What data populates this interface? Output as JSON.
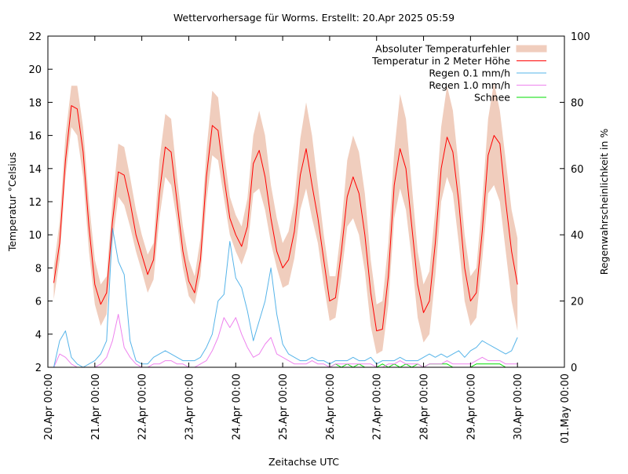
{
  "chart_data": {
    "type": "line",
    "title": "Wettervorhersage für Worms. Erstellt: 20.Apr 2025 05:59",
    "xlabel": "Zeitachse UTC",
    "ylabel": "Temperatur °Celsius",
    "y2label": "Regenwahrscheinlichkeit in %",
    "ylim": [
      2,
      22
    ],
    "y2lim": [
      0,
      100
    ],
    "yticks": [
      "2",
      "4",
      "6",
      "8",
      "10",
      "12",
      "14",
      "16",
      "18",
      "20",
      "22"
    ],
    "y2ticks": [
      "0",
      "20",
      "40",
      "60",
      "80",
      "100"
    ],
    "xlim_days": [
      0,
      11
    ],
    "xticks": [
      "20.Apr 00:00",
      "21.Apr 00:00",
      "22.Apr 00:00",
      "23.Apr 00:00",
      "24.Apr 00:00",
      "25.Apr 00:00",
      "26.Apr 00:00",
      "27.Apr 00:00",
      "28.Apr 00:00",
      "29.Apr 00:00",
      "30.Apr 00:00",
      "01.May 00:00"
    ],
    "grid": false,
    "legend_position": "top-right",
    "legend": [
      {
        "label": "Absoluter Temperaturfehler",
        "color": "#f0cdbd",
        "kind": "band"
      },
      {
        "label": "Temperatur in 2 Meter Höhe",
        "color": "#ff0000",
        "kind": "line"
      },
      {
        "label": "Regen 0.1 mm/h",
        "color": "#56b4e9",
        "kind": "line"
      },
      {
        "label": "Regen 1.0 mm/h",
        "color": "#ee82ee",
        "kind": "line"
      },
      {
        "label": "Schnee",
        "color": "#00dd00",
        "kind": "line"
      }
    ],
    "x_days": [
      0.0,
      0.125,
      0.25,
      0.375,
      0.5,
      0.625,
      0.75,
      0.875,
      1.0,
      1.125,
      1.25,
      1.375,
      1.5,
      1.625,
      1.75,
      1.875,
      2.0,
      2.125,
      2.25,
      2.375,
      2.5,
      2.625,
      2.75,
      2.875,
      3.0,
      3.125,
      3.25,
      3.375,
      3.5,
      3.625,
      3.75,
      3.875,
      4.0,
      4.125,
      4.25,
      4.375,
      4.5,
      4.625,
      4.75,
      4.875,
      5.0,
      5.125,
      5.25,
      5.375,
      5.5,
      5.625,
      5.75,
      5.875,
      6.0,
      6.125,
      6.25,
      6.375,
      6.5,
      6.625,
      6.75,
      6.875,
      7.0,
      7.125,
      7.25,
      7.375,
      7.5,
      7.625,
      7.75,
      7.875,
      8.0,
      8.125,
      8.25,
      8.375,
      8.5,
      8.625,
      8.75,
      8.875,
      9.0,
      9.125,
      9.25,
      9.375,
      9.5,
      9.625,
      9.75,
      9.875,
      10.0
    ],
    "series": [
      {
        "name": "Temperatur in 2 Meter Höhe",
        "unit": "°C",
        "values": [
          null,
          7.1,
          9.5,
          14.5,
          17.8,
          17.6,
          15.0,
          10.5,
          7.0,
          5.8,
          6.5,
          10.8,
          13.8,
          13.6,
          12.0,
          10.0,
          8.8,
          7.6,
          8.5,
          12.5,
          15.3,
          15.0,
          12.0,
          9.0,
          7.2,
          6.5,
          8.5,
          13.5,
          16.6,
          16.3,
          13.5,
          11.0,
          10.0,
          9.3,
          10.5,
          14.3,
          15.1,
          13.5,
          11.0,
          9.0,
          8.0,
          8.5,
          10.2,
          13.6,
          15.2,
          13.0,
          11.0,
          8.5,
          6.0,
          6.2,
          9.0,
          12.3,
          13.5,
          12.5,
          10.0,
          6.5,
          4.2,
          4.3,
          7.5,
          13.0,
          15.2,
          14.0,
          10.5,
          7.0,
          5.3,
          6.0,
          9.5,
          14.0,
          15.9,
          15.0,
          12.0,
          8.0,
          6.0,
          6.5,
          10.2,
          14.8,
          16.0,
          15.5,
          12.0,
          9.0,
          7.0
        ]
      },
      {
        "name": "Temperatur Min (Fehlerband)",
        "unit": "°C",
        "values": [
          null,
          6.1,
          8.5,
          13.5,
          16.5,
          16.0,
          13.5,
          9.0,
          5.8,
          4.5,
          5.2,
          9.5,
          12.3,
          11.8,
          10.5,
          9.0,
          7.8,
          6.5,
          7.3,
          11.0,
          13.5,
          13.0,
          10.8,
          8.0,
          6.3,
          5.8,
          7.5,
          12.0,
          14.8,
          14.5,
          12.2,
          10.0,
          9.0,
          8.2,
          9.2,
          12.5,
          12.8,
          11.5,
          9.5,
          8.0,
          6.8,
          7.0,
          8.6,
          11.5,
          12.8,
          11.0,
          9.5,
          7.0,
          4.8,
          5.0,
          7.5,
          10.5,
          11.0,
          10.0,
          7.8,
          4.5,
          2.8,
          3.0,
          5.8,
          11.0,
          12.8,
          11.5,
          8.5,
          5.0,
          3.5,
          4.0,
          7.5,
          12.0,
          13.5,
          12.5,
          9.5,
          6.0,
          4.5,
          5.0,
          8.5,
          12.5,
          13.0,
          12.0,
          9.0,
          6.0,
          4.2
        ]
      },
      {
        "name": "Temperatur Max (Fehlerband)",
        "unit": "°C",
        "values": [
          null,
          8.0,
          10.8,
          16.0,
          19.0,
          19.0,
          16.5,
          12.0,
          8.5,
          7.0,
          7.5,
          12.0,
          15.5,
          15.3,
          13.5,
          11.5,
          10.0,
          8.8,
          9.5,
          14.5,
          17.3,
          17.0,
          13.5,
          10.5,
          8.5,
          7.5,
          9.8,
          15.0,
          18.7,
          18.3,
          15.0,
          12.3,
          11.2,
          10.5,
          12.2,
          16.0,
          17.5,
          16.0,
          13.0,
          11.0,
          9.5,
          10.2,
          12.0,
          15.8,
          18.0,
          16.0,
          13.0,
          10.0,
          7.5,
          7.5,
          10.5,
          14.5,
          16.0,
          15.0,
          12.5,
          8.5,
          5.8,
          6.0,
          9.5,
          15.0,
          18.5,
          17.0,
          13.0,
          9.0,
          7.0,
          7.8,
          11.5,
          16.5,
          19.0,
          17.5,
          14.0,
          10.0,
          7.5,
          8.0,
          12.0,
          17.0,
          19.2,
          17.5,
          14.5,
          11.5,
          9.8
        ]
      },
      {
        "name": "Regen 0.1 mm/h",
        "unit": "%",
        "values": [
          null,
          0,
          8,
          11,
          3,
          1,
          0,
          1,
          2,
          4,
          8,
          42,
          32,
          28,
          8,
          2,
          1,
          1,
          3,
          4,
          5,
          4,
          3,
          2,
          2,
          2,
          3,
          6,
          10,
          20,
          22,
          38,
          27,
          24,
          17,
          8,
          14,
          20,
          30,
          16,
          7,
          4,
          3,
          2,
          2,
          3,
          2,
          2,
          1,
          2,
          2,
          2,
          3,
          2,
          2,
          3,
          1,
          2,
          2,
          2,
          3,
          2,
          2,
          2,
          3,
          4,
          3,
          4,
          3,
          4,
          5,
          3,
          5,
          6,
          8,
          7,
          6,
          5,
          4,
          5,
          9
        ]
      },
      {
        "name": "Regen 1.0 mm/h",
        "unit": "%",
        "values": [
          null,
          0,
          4,
          3,
          1,
          0,
          0,
          0,
          0,
          1,
          3,
          8,
          16,
          6,
          3,
          1,
          0,
          0,
          1,
          1,
          2,
          2,
          1,
          1,
          0,
          0,
          1,
          2,
          5,
          9,
          15,
          12,
          15,
          10,
          6,
          3,
          4,
          7,
          9,
          4,
          3,
          2,
          1,
          1,
          1,
          2,
          1,
          1,
          0,
          1,
          1,
          1,
          1,
          1,
          1,
          1,
          0,
          0,
          1,
          1,
          2,
          1,
          1,
          1,
          0,
          1,
          1,
          1,
          2,
          1,
          1,
          1,
          1,
          2,
          3,
          2,
          2,
          2,
          1,
          1,
          1
        ]
      },
      {
        "name": "Schnee",
        "unit": "%",
        "values": [
          null,
          0,
          0,
          0,
          0,
          0,
          0,
          0,
          0,
          0,
          0,
          0,
          0,
          0,
          0,
          0,
          0,
          0,
          0,
          0,
          0,
          0,
          0,
          0,
          0,
          0,
          0,
          0,
          0,
          0,
          0,
          0,
          0,
          0,
          0,
          0,
          0,
          0,
          0,
          0,
          0,
          0,
          0,
          0,
          0,
          0,
          0,
          0,
          0,
          1,
          0,
          1,
          0,
          1,
          0,
          0,
          0,
          1,
          0,
          1,
          0,
          1,
          0,
          1,
          0,
          1,
          1,
          1,
          1,
          0,
          0,
          0,
          0,
          1,
          1,
          1,
          1,
          1,
          0,
          0,
          0
        ]
      }
    ]
  }
}
